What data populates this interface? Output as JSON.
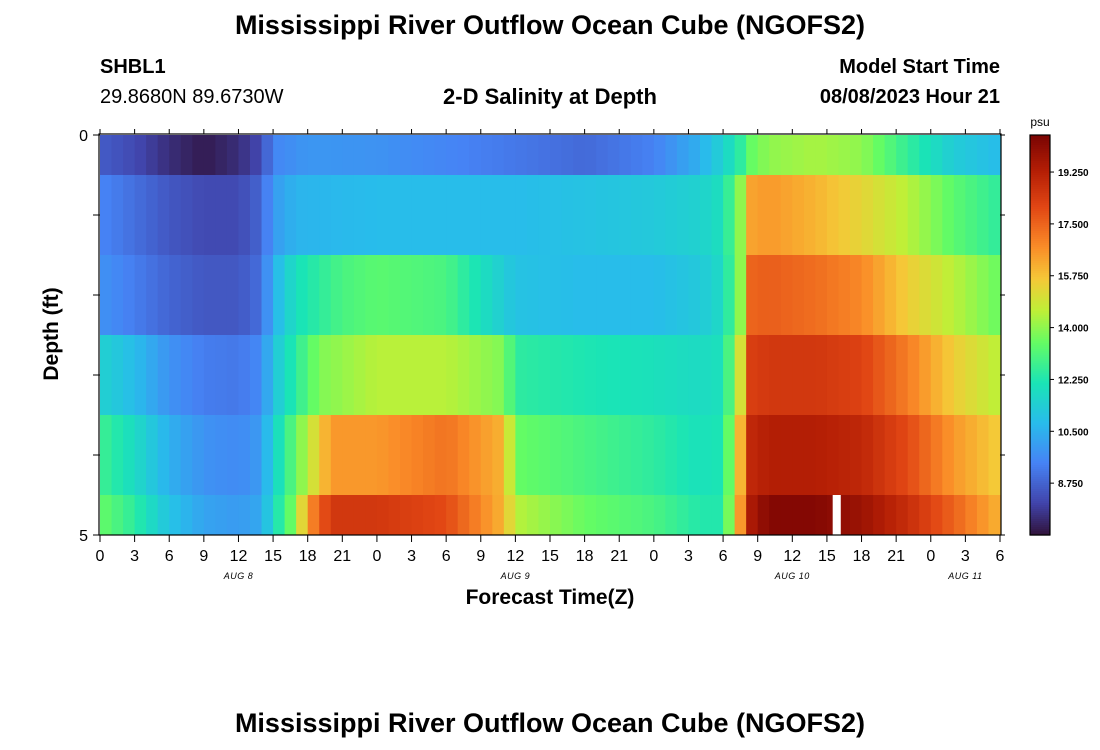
{
  "header": {
    "title": "Mississippi River Outflow Ocean Cube (NGOFS2)",
    "station_id": "SHBL1",
    "station_coords": "29.8680N  89.6730W",
    "plot_title": "2-D Salinity at Depth",
    "model_start_label": "Model Start Time",
    "model_start_value": "08/08/2023 Hour 21"
  },
  "footer": {
    "title": "Mississippi River Outflow Ocean Cube (NGOFS2)"
  },
  "chart_data": {
    "type": "heatmap",
    "xlabel": "Forecast Time(Z)",
    "ylabel": "Depth (ft)",
    "y_tick_labels": [
      "0",
      "5"
    ],
    "ylim": [
      0,
      5
    ],
    "y_reversed": true,
    "x_hours_range": [
      0,
      78
    ],
    "x_tick_labels": [
      "0",
      "3",
      "6",
      "9",
      "12",
      "15",
      "18",
      "21",
      "0",
      "3",
      "6",
      "9",
      "12",
      "15",
      "18",
      "21",
      "0",
      "3",
      "6",
      "9",
      "12",
      "15",
      "18",
      "21",
      "0",
      "3",
      "6"
    ],
    "day_labels": [
      {
        "label": "AUG 8",
        "hour": 12
      },
      {
        "label": "AUG 9",
        "hour": 36
      },
      {
        "label": "AUG 10",
        "hour": 60
      },
      {
        "label": "AUG 11",
        "hour": 75
      }
    ],
    "colorbar": {
      "unit": "psu",
      "range": [
        7.0,
        20.5
      ],
      "ticks": [
        "19.250",
        "17.500",
        "15.750",
        "14.000",
        "12.250",
        "10.500",
        "8.750"
      ],
      "tick_values": [
        19.25,
        17.5,
        15.75,
        14.0,
        12.25,
        10.5,
        8.75
      ]
    },
    "missing_data": [
      {
        "layer": 5,
        "hour_start": 63.5,
        "hour_end": 64.2
      }
    ],
    "layers": [
      {
        "depth_top": 0.0,
        "depth_bottom": 0.5,
        "hours": [
          0,
          3,
          6,
          9,
          12,
          14,
          15,
          18,
          24,
          30,
          36,
          42,
          48,
          52,
          54,
          55.5,
          56.5,
          58,
          62,
          66,
          70,
          74,
          78
        ],
        "salinity": [
          8.6,
          8.2,
          7.6,
          7.2,
          7.6,
          8.2,
          9.5,
          9.9,
          9.8,
          9.5,
          9.2,
          8.9,
          9.4,
          10.5,
          11.5,
          12.5,
          13.5,
          14.0,
          14.3,
          14.0,
          12.6,
          11.3,
          10.8
        ]
      },
      {
        "depth_top": 0.5,
        "depth_bottom": 1.5,
        "hours": [
          0,
          3,
          6,
          9,
          12,
          14,
          15,
          17,
          24,
          30,
          36,
          42,
          48,
          52,
          54,
          55.5,
          56.5,
          58,
          62,
          66,
          70,
          74,
          78
        ],
        "salinity": [
          9.5,
          9.0,
          8.5,
          8.2,
          8.2,
          8.8,
          10.0,
          10.6,
          10.8,
          10.8,
          10.8,
          11.0,
          11.2,
          11.5,
          12.0,
          14.0,
          16.3,
          16.5,
          16.0,
          15.3,
          14.5,
          13.3,
          12.5
        ]
      },
      {
        "depth_top": 1.5,
        "depth_bottom": 2.5,
        "hours": [
          0,
          3,
          6,
          9,
          12,
          14,
          15,
          17,
          21,
          24,
          30,
          33,
          36,
          42,
          48,
          52,
          54,
          55.5,
          56.5,
          58,
          62,
          66,
          70,
          74,
          78
        ],
        "salinity": [
          9.8,
          9.3,
          8.8,
          8.5,
          8.5,
          9.0,
          10.5,
          12.0,
          13.0,
          13.3,
          13.0,
          12.0,
          11.0,
          10.8,
          10.8,
          11.2,
          11.8,
          14.0,
          17.5,
          17.6,
          17.3,
          16.8,
          15.5,
          14.5,
          13.5
        ]
      },
      {
        "depth_top": 2.5,
        "depth_bottom": 3.5,
        "hours": [
          0,
          3,
          6,
          9,
          12,
          14,
          15,
          17,
          19,
          24,
          30,
          35,
          36,
          42,
          48,
          52,
          54,
          55.5,
          56.5,
          58,
          62,
          66,
          70,
          74,
          78
        ],
        "salinity": [
          11.5,
          10.8,
          9.8,
          9.3,
          9.2,
          9.6,
          11.0,
          12.5,
          13.8,
          14.5,
          14.5,
          13.8,
          12.5,
          12.2,
          12.0,
          11.8,
          12.0,
          15.0,
          18.3,
          18.5,
          18.5,
          18.2,
          17.0,
          15.5,
          14.5
        ]
      },
      {
        "depth_top": 3.5,
        "depth_bottom": 4.5,
        "hours": [
          0,
          3,
          6,
          9,
          12,
          14,
          15,
          17,
          20,
          24,
          30,
          35,
          36,
          42,
          48,
          52,
          54,
          55.5,
          56.5,
          58,
          62,
          66,
          70,
          74,
          78
        ],
        "salinity": [
          12.8,
          11.8,
          10.5,
          9.8,
          9.6,
          10.0,
          11.5,
          13.5,
          16.5,
          16.5,
          17.2,
          16.0,
          13.5,
          13.0,
          12.5,
          12.0,
          12.2,
          16.0,
          19.0,
          19.3,
          19.3,
          19.0,
          18.0,
          16.5,
          15.5
        ]
      },
      {
        "depth_top": 4.5,
        "depth_bottom": 5.0,
        "hours": [
          0,
          3,
          6,
          9,
          12,
          14,
          15,
          17,
          18,
          20,
          24,
          30,
          35,
          36,
          42,
          48,
          52,
          54,
          55.5,
          56.5,
          58,
          62,
          66,
          70,
          74,
          78
        ],
        "salinity": [
          13.5,
          12.5,
          11.0,
          10.2,
          10.0,
          10.3,
          11.8,
          14.0,
          16.5,
          18.5,
          18.5,
          18.0,
          16.0,
          14.5,
          13.5,
          13.0,
          12.3,
          12.3,
          16.5,
          19.5,
          20.3,
          20.3,
          19.8,
          18.8,
          17.5,
          16.0
        ]
      }
    ]
  }
}
